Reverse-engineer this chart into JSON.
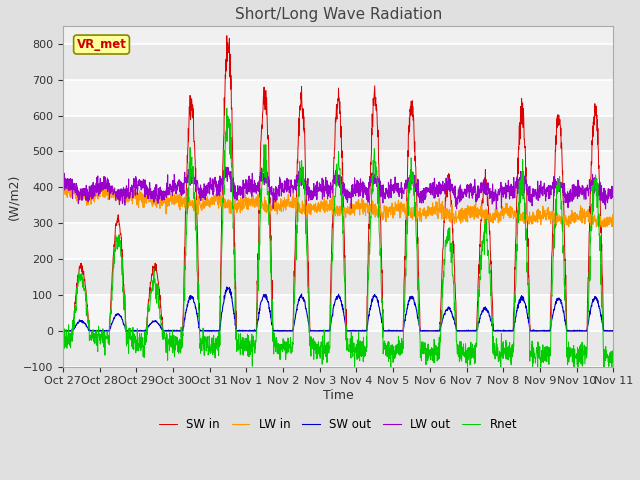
{
  "title": "Short/Long Wave Radiation",
  "xlabel": "Time",
  "ylabel": "(W/m2)",
  "ylim": [
    -100,
    850
  ],
  "yticks": [
    -100,
    0,
    100,
    200,
    300,
    400,
    500,
    600,
    700,
    800
  ],
  "xtick_labels": [
    "Oct 27",
    "Oct 28",
    "Oct 29",
    "Oct 30",
    "Oct 31",
    "Nov 1",
    "Nov 2",
    "Nov 3",
    "Nov 4",
    "Nov 5",
    "Nov 6",
    "Nov 7",
    "Nov 8",
    "Nov 9",
    "Nov 10",
    "Nov 11"
  ],
  "annotation_text": "VR_met",
  "annotation_color": "#cc0000",
  "annotation_bg": "#ffff99",
  "colors": {
    "SW_in": "#dd0000",
    "LW_in": "#ff9900",
    "SW_out": "#0000cc",
    "LW_out": "#9900cc",
    "Rnet": "#00cc00"
  },
  "legend_labels": [
    "SW in",
    "LW in",
    "SW out",
    "LW out",
    "Rnet"
  ],
  "bg_color": "#e0e0e0",
  "plot_bg_color": "#f0f0f0",
  "n_days": 15,
  "pts_per_day": 144,
  "day_peaks_SW": [
    180,
    310,
    180,
    635,
    790,
    655,
    645,
    650,
    655,
    630,
    420,
    415,
    610,
    605,
    610
  ],
  "figsize": [
    6.4,
    4.8
  ],
  "dpi": 100
}
